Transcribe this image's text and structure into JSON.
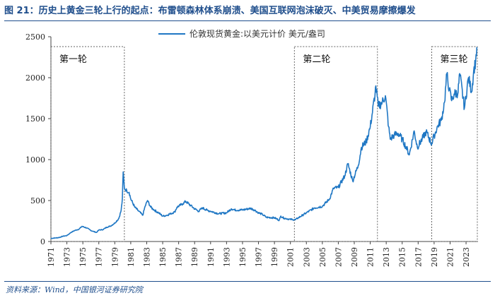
{
  "header": {
    "title": "图 21：历史上黄金三轮上行的起点：布雷顿森林体系崩溃、美国互联网泡沫破灭、中美贸易摩擦爆发"
  },
  "footer": {
    "source": "资料来源：Wind，中国银河证券研究院"
  },
  "colors": {
    "series": "#1f77c4",
    "title": "#1f4e8c",
    "box": "#666666"
  },
  "chart_data": {
    "type": "line",
    "title": "图 21：历史上黄金三轮上行的起点：布雷顿森林体系崩溃、美国互联网泡沫破灭、中美贸易摩擦爆发",
    "ylabel": "",
    "xlabel": "",
    "ylim": [
      0,
      2500
    ],
    "xlim": [
      1971,
      2024.5
    ],
    "yticks": [
      0,
      500,
      1000,
      1500,
      2000,
      2500
    ],
    "xticks": [
      "1971",
      "1973",
      "1975",
      "1977",
      "1979",
      "1981",
      "1983",
      "1985",
      "1987",
      "1989",
      "1991",
      "1993",
      "1995",
      "1997",
      "1999",
      "2001",
      "2003",
      "2005",
      "2007",
      "2009",
      "2011",
      "2013",
      "2015",
      "2017",
      "2019",
      "2021",
      "2023"
    ],
    "legend_position": "top-center",
    "series": [
      {
        "name": "伦敦现货黄金:以美元计价 美元/盎司",
        "points": [
          [
            1971.0,
            38
          ],
          [
            1972.0,
            48
          ],
          [
            1972.5,
            65
          ],
          [
            1973.0,
            72
          ],
          [
            1973.5,
            110
          ],
          [
            1974.0,
            135
          ],
          [
            1974.5,
            150
          ],
          [
            1974.9,
            185
          ],
          [
            1975.5,
            165
          ],
          [
            1976.0,
            135
          ],
          [
            1976.7,
            110
          ],
          [
            1977.0,
            140
          ],
          [
            1977.5,
            145
          ],
          [
            1978.0,
            175
          ],
          [
            1978.5,
            190
          ],
          [
            1979.0,
            225
          ],
          [
            1979.5,
            280
          ],
          [
            1979.8,
            380
          ],
          [
            1979.95,
            520
          ],
          [
            1980.05,
            850
          ],
          [
            1980.2,
            650
          ],
          [
            1980.5,
            620
          ],
          [
            1980.8,
            600
          ],
          [
            1981.0,
            520
          ],
          [
            1981.5,
            420
          ],
          [
            1982.0,
            370
          ],
          [
            1982.5,
            320
          ],
          [
            1982.8,
            430
          ],
          [
            1983.1,
            500
          ],
          [
            1983.5,
            420
          ],
          [
            1984.0,
            380
          ],
          [
            1984.5,
            350
          ],
          [
            1985.0,
            310
          ],
          [
            1985.5,
            320
          ],
          [
            1986.0,
            340
          ],
          [
            1986.5,
            360
          ],
          [
            1986.8,
            420
          ],
          [
            1987.5,
            460
          ],
          [
            1987.9,
            490
          ],
          [
            1988.5,
            440
          ],
          [
            1989.0,
            400
          ],
          [
            1989.5,
            370
          ],
          [
            1990.0,
            410
          ],
          [
            1990.6,
            380
          ],
          [
            1991.0,
            370
          ],
          [
            1992.0,
            340
          ],
          [
            1993.0,
            350
          ],
          [
            1993.6,
            400
          ],
          [
            1994.0,
            385
          ],
          [
            1995.0,
            385
          ],
          [
            1996.0,
            405
          ],
          [
            1996.5,
            385
          ],
          [
            1997.0,
            350
          ],
          [
            1997.5,
            330
          ],
          [
            1998.0,
            295
          ],
          [
            1999.0,
            290
          ],
          [
            1999.6,
            260
          ],
          [
            1999.8,
            310
          ],
          [
            2000.2,
            285
          ],
          [
            2001.0,
            270
          ],
          [
            2001.6,
            265
          ],
          [
            2002.0,
            290
          ],
          [
            2003.0,
            350
          ],
          [
            2004.0,
            410
          ],
          [
            2005.0,
            430
          ],
          [
            2005.9,
            520
          ],
          [
            2006.4,
            650
          ],
          [
            2007.0,
            660
          ],
          [
            2007.8,
            800
          ],
          [
            2008.2,
            950
          ],
          [
            2008.8,
            740
          ],
          [
            2009.5,
            930
          ],
          [
            2009.9,
            1150
          ],
          [
            2010.5,
            1220
          ],
          [
            2011.0,
            1400
          ],
          [
            2011.6,
            1800
          ],
          [
            2011.7,
            1900
          ],
          [
            2012.0,
            1650
          ],
          [
            2012.5,
            1700
          ],
          [
            2012.9,
            1780
          ],
          [
            2013.3,
            1400
          ],
          [
            2013.5,
            1250
          ],
          [
            2014.0,
            1300
          ],
          [
            2014.5,
            1320
          ],
          [
            2015.0,
            1250
          ],
          [
            2015.5,
            1150
          ],
          [
            2015.9,
            1060
          ],
          [
            2016.5,
            1350
          ],
          [
            2016.9,
            1150
          ],
          [
            2017.5,
            1250
          ],
          [
            2018.0,
            1340
          ],
          [
            2018.7,
            1190
          ],
          [
            2019.0,
            1290
          ],
          [
            2019.5,
            1420
          ],
          [
            2019.9,
            1480
          ],
          [
            2020.3,
            1700
          ],
          [
            2020.6,
            2050
          ],
          [
            2020.9,
            1850
          ],
          [
            2021.2,
            1720
          ],
          [
            2021.5,
            1800
          ],
          [
            2022.0,
            1820
          ],
          [
            2022.2,
            2050
          ],
          [
            2022.8,
            1630
          ],
          [
            2023.3,
            2000
          ],
          [
            2023.7,
            1830
          ],
          [
            2023.95,
            2080
          ],
          [
            2024.2,
            2200
          ],
          [
            2024.35,
            2370
          ]
        ]
      }
    ],
    "annotations": [
      {
        "label": "第一轮",
        "from": 1971.0,
        "to": 1980.2
      },
      {
        "label": "第二轮",
        "from": 2001.5,
        "to": 2011.9
      },
      {
        "label": "第三轮",
        "from": 2018.7,
        "to": 2024.6
      }
    ]
  }
}
